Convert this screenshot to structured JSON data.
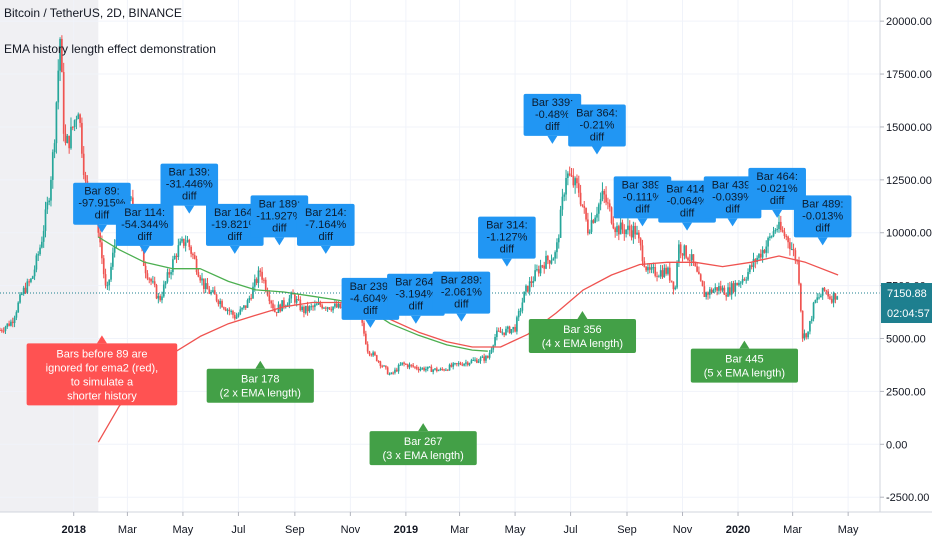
{
  "header": {
    "symbol_line": "Bitcoin / TetherUS, 2D, BINANCE",
    "indicator_line": "EMA history length effect demonstration"
  },
  "price_scale": {
    "last_price": "7150.88",
    "countdown": "02:04:57"
  },
  "colors": {
    "candle_up": "#26a69a",
    "candle_down": "#ef5350",
    "ema1_line": "#4caf50",
    "ema2_line": "#ef5350",
    "diff_label_bg": "#2196f3",
    "milestone_label_bg": "#43a047",
    "note_label_bg": "#ff5252",
    "ignored_zone": "#f0f0f3",
    "last_price_badge": "#1e7f8f"
  },
  "chart_data": {
    "type": "candlestick",
    "y_ticks": [
      -2500,
      0,
      2500,
      5000,
      7500,
      10000,
      12500,
      15000,
      17500,
      20000
    ],
    "y_tick_labels": [
      "-2500.00",
      "0.00",
      "2500.00",
      "5000.00",
      "7500.00",
      "10000.00",
      "12500.00",
      "15000.00",
      "17500.00",
      "20000.00"
    ],
    "ylim": [
      -3200,
      21000
    ],
    "x_ticks": [
      "2018",
      "Mar",
      "May",
      "Jul",
      "Sep",
      "Nov",
      "2019",
      "Mar",
      "May",
      "Jul",
      "Sep",
      "Nov",
      "2020",
      "Mar",
      "May"
    ],
    "x_tick_dates": [
      "2018-01-01",
      "2018-03-01",
      "2018-05-01",
      "2018-07-01",
      "2018-09-01",
      "2018-11-01",
      "2019-01-01",
      "2019-03-01",
      "2019-05-01",
      "2019-07-01",
      "2019-09-01",
      "2019-11-01",
      "2020-01-01",
      "2020-03-01",
      "2020-05-01"
    ],
    "xlim": [
      "2017-10-12",
      "2020-06-05"
    ],
    "ignored_until": "2018-01-28",
    "price_path": [
      [
        "2017-10-12",
        5400
      ],
      [
        "2017-10-25",
        5800
      ],
      [
        "2017-11-06",
        7200
      ],
      [
        "2017-11-16",
        7800
      ],
      [
        "2017-11-26",
        9500
      ],
      [
        "2017-12-04",
        11500
      ],
      [
        "2017-12-10",
        14000
      ],
      [
        "2017-12-17",
        19200
      ],
      [
        "2017-12-22",
        14000
      ],
      [
        "2017-12-28",
        14500
      ],
      [
        "2018-01-06",
        16000
      ],
      [
        "2018-01-16",
        11300
      ],
      [
        "2018-01-26",
        11000
      ],
      [
        "2018-02-06",
        7000
      ],
      [
        "2018-02-20",
        10800
      ],
      [
        "2018-03-05",
        11400
      ],
      [
        "2018-03-20",
        8400
      ],
      [
        "2018-04-05",
        6800
      ],
      [
        "2018-04-25",
        9200
      ],
      [
        "2018-05-05",
        9700
      ],
      [
        "2018-05-25",
        7400
      ],
      [
        "2018-06-10",
        6800
      ],
      [
        "2018-06-28",
        6000
      ],
      [
        "2018-07-10",
        6600
      ],
      [
        "2018-07-25",
        8200
      ],
      [
        "2018-08-10",
        6300
      ],
      [
        "2018-08-30",
        7000
      ],
      [
        "2018-09-10",
        6300
      ],
      [
        "2018-09-30",
        6600
      ],
      [
        "2018-10-20",
        6450
      ],
      [
        "2018-11-10",
        6350
      ],
      [
        "2018-11-20",
        4500
      ],
      [
        "2018-12-01",
        4000
      ],
      [
        "2018-12-15",
        3250
      ],
      [
        "2018-12-28",
        3800
      ],
      [
        "2019-01-15",
        3600
      ],
      [
        "2019-02-08",
        3500
      ],
      [
        "2019-03-01",
        3800
      ],
      [
        "2019-04-01",
        4100
      ],
      [
        "2019-04-10",
        5200
      ],
      [
        "2019-05-01",
        5500
      ],
      [
        "2019-05-12",
        7200
      ],
      [
        "2019-05-30",
        8500
      ],
      [
        "2019-06-15",
        9000
      ],
      [
        "2019-06-26",
        12800
      ],
      [
        "2019-07-10",
        12000
      ],
      [
        "2019-07-20",
        10200
      ],
      [
        "2019-08-06",
        11800
      ],
      [
        "2019-08-20",
        10200
      ],
      [
        "2019-09-10",
        10100
      ],
      [
        "2019-09-24",
        8100
      ],
      [
        "2019-10-15",
        8200
      ],
      [
        "2019-10-24",
        7400
      ],
      [
        "2019-10-27",
        9400
      ],
      [
        "2019-11-10",
        8800
      ],
      [
        "2019-11-25",
        7100
      ],
      [
        "2019-12-10",
        7400
      ],
      [
        "2019-12-20",
        7200
      ],
      [
        "2020-01-10",
        8000
      ],
      [
        "2020-01-20",
        8700
      ],
      [
        "2020-02-01",
        9400
      ],
      [
        "2020-02-12",
        10300
      ],
      [
        "2020-02-25",
        9700
      ],
      [
        "2020-03-07",
        8500
      ],
      [
        "2020-03-12",
        5100
      ],
      [
        "2020-03-18",
        5300
      ],
      [
        "2020-03-25",
        6700
      ],
      [
        "2020-04-06",
        7300
      ],
      [
        "2020-04-12",
        6900
      ],
      [
        "2020-04-20",
        7150
      ]
    ],
    "series": [
      {
        "name": "ema1",
        "color": "#4caf50",
        "points": [
          [
            "2018-01-28",
            9800
          ],
          [
            "2018-02-20",
            9200
          ],
          [
            "2018-03-20",
            8600
          ],
          [
            "2018-04-20",
            8300
          ],
          [
            "2018-05-20",
            8300
          ],
          [
            "2018-06-20",
            7700
          ],
          [
            "2018-07-20",
            7300
          ],
          [
            "2018-08-20",
            7200
          ],
          [
            "2018-09-20",
            7000
          ],
          [
            "2018-10-20",
            6800
          ],
          [
            "2018-11-20",
            6400
          ],
          [
            "2018-12-15",
            5700
          ],
          [
            "2019-01-15",
            5150
          ],
          [
            "2019-02-15",
            4700
          ],
          [
            "2019-03-15",
            4450
          ],
          [
            "2019-04-01",
            4400
          ]
        ]
      },
      {
        "name": "ema2",
        "color": "#ef5350",
        "points": [
          [
            "2018-01-28",
            100
          ],
          [
            "2018-02-20",
            1800
          ],
          [
            "2018-03-20",
            3200
          ],
          [
            "2018-04-20",
            4300
          ],
          [
            "2018-05-20",
            5100
          ],
          [
            "2018-06-20",
            5700
          ],
          [
            "2018-07-20",
            6100
          ],
          [
            "2018-08-20",
            6500
          ],
          [
            "2018-09-20",
            6700
          ],
          [
            "2018-10-20",
            6700
          ],
          [
            "2018-11-20",
            6500
          ],
          [
            "2018-12-15",
            5900
          ],
          [
            "2019-01-15",
            5300
          ],
          [
            "2019-02-15",
            4850
          ],
          [
            "2019-03-15",
            4600
          ],
          [
            "2019-04-15",
            4600
          ],
          [
            "2019-05-15",
            5200
          ],
          [
            "2019-06-15",
            6200
          ],
          [
            "2019-07-15",
            7300
          ],
          [
            "2019-08-15",
            8000
          ],
          [
            "2019-09-15",
            8500
          ],
          [
            "2019-10-15",
            8600
          ],
          [
            "2019-11-15",
            8600
          ],
          [
            "2019-12-15",
            8400
          ],
          [
            "2020-01-15",
            8600
          ],
          [
            "2020-02-15",
            8900
          ],
          [
            "2020-03-15",
            8600
          ],
          [
            "2020-04-20",
            8000
          ]
        ]
      }
    ],
    "diff_labels": [
      {
        "lines": [
          "Bar 89:",
          "-97.915%",
          "diff"
        ],
        "date": "2018-02-01",
        "y": 10000
      },
      {
        "lines": [
          "Bar 114:",
          "-54.344%",
          "diff"
        ],
        "date": "2018-03-20",
        "y": 9000
      },
      {
        "lines": [
          "Bar 139:",
          "-31.446%",
          "diff"
        ],
        "date": "2018-05-08",
        "y": 10900
      },
      {
        "lines": [
          "Bar 164:",
          "-19.821%",
          "diff"
        ],
        "date": "2018-06-27",
        "y": 9000
      },
      {
        "lines": [
          "Bar 189:",
          "-11.927%",
          "diff"
        ],
        "date": "2018-08-15",
        "y": 9400
      },
      {
        "lines": [
          "Bar 214:",
          "-7.164%",
          "diff"
        ],
        "date": "2018-10-05",
        "y": 9000
      },
      {
        "lines": [
          "Bar 239:",
          "-4.604%",
          "diff"
        ],
        "date": "2018-11-23",
        "y": 5500
      },
      {
        "lines": [
          "Bar 264:",
          "-3.194%",
          "diff"
        ],
        "date": "2019-01-12",
        "y": 5700
      },
      {
        "lines": [
          "Bar 289:",
          "-2.061%",
          "diff"
        ],
        "date": "2019-03-03",
        "y": 5800
      },
      {
        "lines": [
          "Bar 314:",
          "-1.127%",
          "diff"
        ],
        "date": "2019-04-22",
        "y": 8400
      },
      {
        "lines": [
          "Bar 339:",
          "-0.48%",
          "diff"
        ],
        "date": "2019-06-11",
        "y": 14200
      },
      {
        "lines": [
          "Bar 364:",
          "-0.21%",
          "diff"
        ],
        "date": "2019-07-30",
        "y": 13700
      },
      {
        "lines": [
          "Bar 389:",
          "-0.111%",
          "diff"
        ],
        "date": "2019-09-18",
        "y": 10300
      },
      {
        "lines": [
          "Bar 414:",
          "-0.064%",
          "diff"
        ],
        "date": "2019-11-06",
        "y": 10100
      },
      {
        "lines": [
          "Bar 439:",
          "-0.039%",
          "diff"
        ],
        "date": "2019-12-26",
        "y": 10300
      },
      {
        "lines": [
          "Bar 464:",
          "-0.021%",
          "diff"
        ],
        "date": "2020-02-13",
        "y": 10700
      },
      {
        "lines": [
          "Bar 489:",
          "-0.013%",
          "diff"
        ],
        "date": "2020-04-03",
        "y": 9400
      }
    ],
    "milestone_labels": [
      {
        "lines": [
          "Bar 178",
          "(2 x EMA length)"
        ],
        "date": "2018-07-25",
        "y": 3950
      },
      {
        "lines": [
          "Bar 267",
          "(3 x EMA length)"
        ],
        "date": "2019-01-20",
        "y": 1000
      },
      {
        "lines": [
          "Bar 356",
          "(4 x EMA length)"
        ],
        "date": "2019-07-14",
        "y": 6300
      },
      {
        "lines": [
          "Bar 445",
          "(5 x EMA length)"
        ],
        "date": "2020-01-08",
        "y": 4900
      }
    ],
    "note_label": {
      "lines": [
        "Bars before 89 are",
        "ignored for ema2 (red),",
        "to simulate a",
        "shorter history"
      ],
      "date": "2018-02-01",
      "y": 5150
    }
  }
}
